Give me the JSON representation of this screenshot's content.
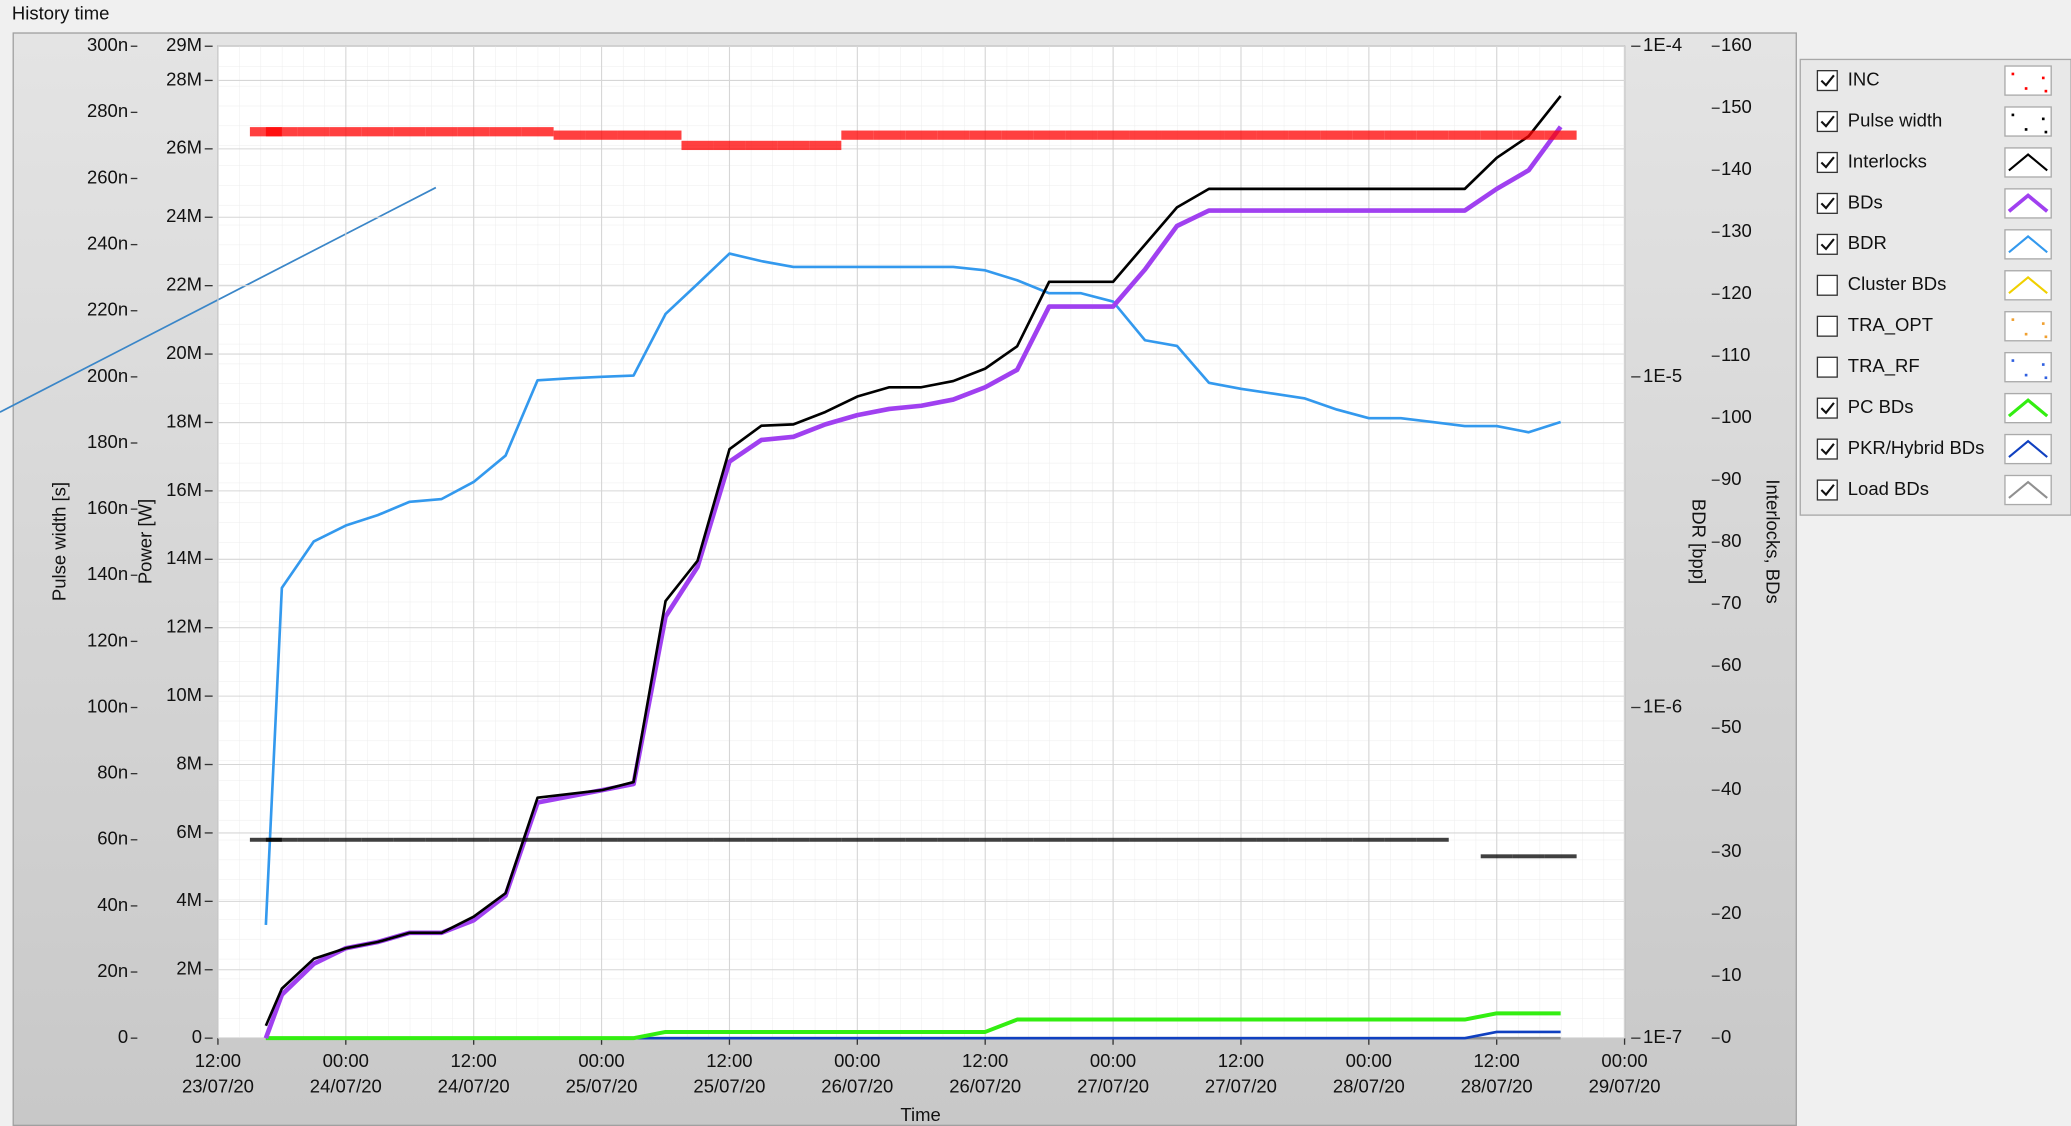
{
  "chart_data": {
    "type": "line",
    "title": "History time",
    "xlabel": "Time",
    "ylabel": "Pulse width [s]",
    "y2label": "Power [W]",
    "y3label": "BDR [bpp]",
    "y4label": "Interlocks, BDs",
    "xlim": [
      "23/07/20 12:00",
      "29/07/20 00:00"
    ],
    "xticks": [
      {
        "value": "23/07/20 12:00",
        "label": "12:00\n23/07/20"
      },
      {
        "value": "24/07/20 00:00",
        "label": "00:00\n24/07/20"
      },
      {
        "value": "24/07/20 12:00",
        "label": "12:00\n24/07/20"
      },
      {
        "value": "25/07/20 00:00",
        "label": "00:00\n25/07/20"
      },
      {
        "value": "25/07/20 12:00",
        "label": "12:00\n25/07/20"
      },
      {
        "value": "26/07/20 00:00",
        "label": "00:00\n26/07/20"
      },
      {
        "value": "26/07/20 12:00",
        "label": "12:00\n26/07/20"
      },
      {
        "value": "27/07/20 00:00",
        "label": "00:00\n27/07/20"
      },
      {
        "value": "27/07/20 12:00",
        "label": "12:00\n27/07/20"
      },
      {
        "value": "28/07/20 00:00",
        "label": "00:00\n28/07/20"
      },
      {
        "value": "28/07/20 12:00",
        "label": "12:00\n28/07/20"
      },
      {
        "value": "29/07/20 00:00",
        "label": "00:00\n29/07/20"
      }
    ],
    "ylim": [
      0,
      3e-07
    ],
    "yticks": [
      0,
      {
        "value": 2e-08,
        "label": "20n"
      },
      {
        "value": 4e-08,
        "label": "40n"
      },
      {
        "value": 6e-08,
        "label": "60n"
      },
      {
        "value": 8e-08,
        "label": "80n"
      },
      {
        "value": 1e-07,
        "label": "100n"
      },
      {
        "value": 1.2e-07,
        "label": "120n"
      },
      {
        "value": 1.4e-07,
        "label": "140n"
      },
      {
        "value": 1.6e-07,
        "label": "160n"
      },
      {
        "value": 1.8e-07,
        "label": "180n"
      },
      {
        "value": 2e-07,
        "label": "200n"
      },
      {
        "value": 2.2e-07,
        "label": "220n"
      },
      {
        "value": 2.4e-07,
        "label": "240n"
      },
      {
        "value": 2.6e-07,
        "label": "260n"
      },
      {
        "value": 2.8e-07,
        "label": "280n"
      },
      {
        "value": 3e-07,
        "label": "300n"
      }
    ],
    "y2lim": [
      0,
      29000000
    ],
    "y2ticks": [
      0,
      {
        "value": 2000000,
        "label": "2M"
      },
      {
        "value": 4000000,
        "label": "4M"
      },
      {
        "value": 6000000,
        "label": "6M"
      },
      {
        "value": 8000000,
        "label": "8M"
      },
      {
        "value": 10000000,
        "label": "10M"
      },
      {
        "value": 12000000,
        "label": "12M"
      },
      {
        "value": 14000000,
        "label": "14M"
      },
      {
        "value": 16000000,
        "label": "16M"
      },
      {
        "value": 18000000,
        "label": "18M"
      },
      {
        "value": 20000000,
        "label": "20M"
      },
      {
        "value": 22000000,
        "label": "22M"
      },
      {
        "value": 24000000,
        "label": "24M"
      },
      {
        "value": 26000000,
        "label": "26M"
      },
      {
        "value": 28000000,
        "label": "28M"
      },
      {
        "value": 29000000,
        "label": "29M"
      }
    ],
    "y3lim": [
      1e-07,
      0.0001
    ],
    "y3scale": "log",
    "y3ticks": [
      {
        "value": 1e-07,
        "label": "1E-7"
      },
      {
        "value": 1e-06,
        "label": "1E-6"
      },
      {
        "value": 1e-05,
        "label": "1E-5"
      },
      {
        "value": 0.0001,
        "label": "1E-4"
      }
    ],
    "y4lim": [
      0,
      160
    ],
    "y4ticks": [
      0,
      10,
      20,
      30,
      40,
      50,
      60,
      70,
      80,
      90,
      100,
      110,
      120,
      130,
      140,
      150,
      160
    ],
    "grid": true,
    "x": [
      "23/07/20 16:30",
      "23/07/20 18:00",
      "23/07/20 21:00",
      "24/07/20 00:00",
      "24/07/20 03:00",
      "24/07/20 06:00",
      "24/07/20 09:00",
      "24/07/20 12:00",
      "24/07/20 15:00",
      "24/07/20 18:00",
      "24/07/20 21:00",
      "25/07/20 00:00",
      "25/07/20 03:00",
      "25/07/20 06:00",
      "25/07/20 09:00",
      "25/07/20 12:00",
      "25/07/20 15:00",
      "25/07/20 18:00",
      "25/07/20 21:00",
      "26/07/20 00:00",
      "26/07/20 03:00",
      "26/07/20 06:00",
      "26/07/20 09:00",
      "26/07/20 12:00",
      "26/07/20 15:00",
      "26/07/20 18:00",
      "26/07/20 21:00",
      "27/07/20 00:00",
      "27/07/20 03:00",
      "27/07/20 06:00",
      "27/07/20 09:00",
      "27/07/20 12:00",
      "27/07/20 15:00",
      "27/07/20 18:00",
      "27/07/20 21:00",
      "28/07/20 00:00",
      "28/07/20 03:00",
      "28/07/20 06:00",
      "28/07/20 09:00",
      "28/07/20 12:00",
      "28/07/20 15:00",
      "28/07/20 18:00"
    ],
    "series": [
      {
        "name": "INC",
        "checked": true,
        "mode": "dots",
        "axis": "y2",
        "color": "#ff0000",
        "values": [
          26500000,
          26500000,
          26500000,
          26500000,
          26500000,
          26500000,
          26500000,
          26500000,
          26500000,
          26500000,
          26400000,
          26400000,
          26400000,
          26400000,
          26100000,
          26100000,
          26100000,
          26100000,
          26100000,
          26400000,
          26400000,
          26400000,
          26400000,
          26400000,
          26400000,
          26400000,
          26400000,
          26400000,
          26400000,
          26400000,
          26400000,
          26400000,
          26400000,
          26400000,
          26400000,
          26400000,
          26400000,
          26400000,
          26400000,
          26400000,
          26400000,
          26400000
        ]
      },
      {
        "name": "Pulse width",
        "checked": true,
        "mode": "dots",
        "axis": "y",
        "color": "#000000",
        "values": [
          6e-08,
          6e-08,
          6e-08,
          6e-08,
          6e-08,
          6e-08,
          6e-08,
          6e-08,
          6e-08,
          6e-08,
          6e-08,
          6e-08,
          6e-08,
          6e-08,
          6e-08,
          6e-08,
          6e-08,
          6e-08,
          6e-08,
          6e-08,
          6e-08,
          6e-08,
          6e-08,
          6e-08,
          6e-08,
          6e-08,
          6e-08,
          6e-08,
          6e-08,
          6e-08,
          6e-08,
          6e-08,
          6e-08,
          6e-08,
          6e-08,
          6e-08,
          6e-08,
          6e-08,
          null,
          5.5e-08,
          5.5e-08,
          5.5e-08
        ]
      },
      {
        "name": "Interlocks",
        "checked": true,
        "mode": "line",
        "line_width": 2,
        "axis": "y4",
        "color": "#000000",
        "values": [
          2,
          8,
          12.8,
          14.5,
          15.5,
          17,
          17,
          19.6,
          23.4,
          38.8,
          39.4,
          40,
          41.3,
          70.5,
          77,
          95,
          98.8,
          99,
          101,
          103.5,
          105,
          105,
          106,
          108,
          111.6,
          122,
          122,
          122,
          128,
          134,
          137,
          137,
          137,
          137,
          137,
          137,
          137,
          137,
          137,
          142,
          145.5,
          152
        ]
      },
      {
        "name": "BDs",
        "checked": true,
        "mode": "line",
        "line_width": 3.5,
        "axis": "y4",
        "color": "#a040f0",
        "values": [
          0,
          7,
          12,
          14.5,
          15.5,
          17,
          17,
          19,
          23,
          38,
          39,
          40,
          41,
          68,
          76,
          93,
          96.5,
          97,
          99,
          100.5,
          101.5,
          102,
          103,
          105,
          107.8,
          118,
          118,
          118,
          124,
          131,
          133.5,
          133.5,
          133.5,
          133.5,
          133.5,
          133.5,
          133.5,
          133.5,
          133.5,
          137,
          140,
          147
        ]
      },
      {
        "name": "BDR",
        "checked": true,
        "mode": "line",
        "line_width": 2,
        "axis": "y3",
        "color": "#3399ee",
        "values": [
          2.2e-07,
          2.3e-06,
          3.18e-06,
          3.55e-06,
          3.82e-06,
          4.19e-06,
          4.27e-06,
          4.81e-06,
          5.78e-06,
          9.77e-06,
          9.9e-06,
          1e-05,
          1.01e-05,
          1.55e-05,
          1.91e-05,
          2.36e-05,
          2.24e-05,
          2.15e-05,
          2.15e-05,
          2.15e-05,
          2.15e-05,
          2.15e-05,
          2.15e-05,
          2.1e-05,
          1.96e-05,
          1.79e-05,
          1.79e-05,
          1.69e-05,
          1.29e-05,
          1.24e-05,
          9.6e-06,
          9.2e-06,
          8.9e-06,
          8.6e-06,
          7.96e-06,
          7.5e-06,
          7.5e-06,
          7.3e-06,
          7.1e-06,
          7.1e-06,
          6.8e-06,
          7.3e-06
        ]
      },
      {
        "name": "Cluster BDs",
        "checked": false,
        "mode": "line",
        "line_width": 2,
        "axis": "y4",
        "color": "#f0d000",
        "values": [
          null,
          null,
          null,
          null,
          null,
          null,
          null,
          null,
          null,
          null,
          null,
          null,
          null,
          null,
          null,
          null,
          null,
          null,
          null,
          null,
          null,
          null,
          null,
          null,
          null,
          null,
          null,
          null,
          null,
          null,
          null,
          null,
          null,
          null,
          null,
          null,
          null,
          null,
          null,
          null,
          null,
          null
        ]
      },
      {
        "name": "TRA_OPT",
        "checked": false,
        "mode": "dots",
        "axis": "y4",
        "color": "#f0a030",
        "values": [
          null,
          null,
          null,
          null,
          null,
          null,
          null,
          null,
          null,
          null,
          null,
          null,
          null,
          null,
          null,
          null,
          null,
          null,
          null,
          null,
          null,
          null,
          null,
          null,
          null,
          null,
          null,
          null,
          null,
          null,
          null,
          null,
          null,
          null,
          null,
          null,
          null,
          null,
          null,
          null,
          null,
          null
        ]
      },
      {
        "name": "TRA_RF",
        "checked": false,
        "mode": "dots",
        "axis": "y4",
        "color": "#3060e0",
        "values": [
          null,
          null,
          null,
          null,
          null,
          null,
          null,
          null,
          null,
          null,
          null,
          null,
          null,
          null,
          null,
          null,
          null,
          null,
          null,
          null,
          null,
          null,
          null,
          null,
          null,
          null,
          null,
          null,
          null,
          null,
          null,
          null,
          null,
          null,
          null,
          null,
          null,
          null,
          null,
          null,
          null,
          null
        ]
      },
      {
        "name": "PC BDs",
        "checked": true,
        "mode": "line",
        "line_width": 3,
        "axis": "y4",
        "color": "#33ee11",
        "values": [
          0,
          0,
          0,
          0,
          0,
          0,
          0,
          0,
          0,
          0,
          0,
          0,
          0,
          1,
          1,
          1,
          1,
          1,
          1,
          1,
          1,
          1,
          1,
          1,
          3,
          3,
          3,
          3,
          3,
          3,
          3,
          3,
          3,
          3,
          3,
          3,
          3,
          3,
          3,
          4,
          4,
          4
        ]
      },
      {
        "name": "PKR/Hybrid BDs",
        "checked": true,
        "mode": "line",
        "line_width": 2,
        "axis": "y4",
        "color": "#1040c0",
        "values": [
          0,
          0,
          0,
          0,
          0,
          0,
          0,
          0,
          0,
          0,
          0,
          0,
          0,
          0,
          0,
          0,
          0,
          0,
          0,
          0,
          0,
          0,
          0,
          0,
          0,
          0,
          0,
          0,
          0,
          0,
          0,
          0,
          0,
          0,
          0,
          0,
          0,
          0,
          0,
          1,
          1,
          1
        ]
      },
      {
        "name": "Load BDs",
        "checked": true,
        "mode": "line",
        "line_width": 2,
        "axis": "y4",
        "color": "#909090",
        "values": [
          0,
          0,
          0,
          0,
          0,
          0,
          0,
          0,
          0,
          0,
          0,
          0,
          0,
          0,
          0,
          0,
          0,
          0,
          0,
          0,
          0,
          0,
          0,
          0,
          0,
          0,
          0,
          0,
          0,
          0,
          0,
          0,
          0,
          0,
          0,
          0,
          0,
          0,
          0,
          0,
          0,
          0
        ]
      }
    ]
  }
}
